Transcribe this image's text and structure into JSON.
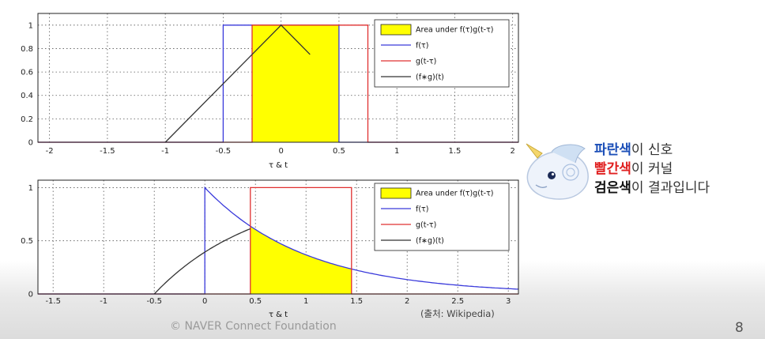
{
  "chart_data": [
    {
      "type": "line",
      "xlabel": "τ & t",
      "xlim": [
        -2.1,
        2.05
      ],
      "ylim": [
        0,
        1.1
      ],
      "xticks": [
        "-2",
        "-1.5",
        "-1",
        "-0.5",
        "0",
        "0.5",
        "1",
        "1.5",
        "2"
      ],
      "yticks": [
        "0",
        "0.2",
        "0.4",
        "0.6",
        "0.8",
        "1"
      ],
      "grid": true,
      "legend_position": "top-right",
      "series": [
        {
          "name": "Area under f(τ)g(t-τ)",
          "kind": "fill",
          "color": "#ffff00",
          "x": [
            -0.25,
            0.5
          ],
          "y": [
            1,
            1
          ]
        },
        {
          "name": "f(τ)",
          "color": "#3a3adb",
          "x": [
            -2.1,
            -0.5,
            -0.5,
            0.5,
            0.5,
            2.05
          ],
          "y": [
            0,
            0,
            1,
            1,
            0,
            0
          ]
        },
        {
          "name": "g(t-τ)",
          "color": "#e03030",
          "x": [
            -2.1,
            -0.25,
            -0.25,
            0.75,
            0.75,
            2.05
          ],
          "y": [
            0,
            0,
            1,
            1,
            0,
            0
          ]
        },
        {
          "name": "(f∗g)(t)",
          "color": "#333333",
          "x": [
            -1,
            0,
            0.25
          ],
          "y": [
            0,
            1,
            0.75
          ]
        }
      ]
    },
    {
      "type": "line",
      "xlabel": "τ & t",
      "xlim": [
        -1.65,
        3.1
      ],
      "ylim": [
        0,
        1.07
      ],
      "xticks": [
        "-1.5",
        "-1",
        "-0.5",
        "0",
        "0.5",
        "1",
        "1.5",
        "2",
        "2.5",
        "3"
      ],
      "yticks": [
        "0",
        "0.5",
        "1"
      ],
      "grid": true,
      "legend_position": "top-right",
      "series": [
        {
          "name": "Area under f(τ)g(t-τ)",
          "kind": "fill",
          "color": "#ffff00",
          "x": [
            0.45,
            1.45
          ],
          "f_decay": 1
        },
        {
          "name": "f(τ)",
          "color": "#3a3adb",
          "x": [
            -1.65,
            0,
            0,
            3.1
          ],
          "f_decay": 1
        },
        {
          "name": "g(t-τ)",
          "color": "#e03030",
          "x": [
            -1.65,
            0.45,
            0.45,
            1.45,
            1.45,
            3.1
          ],
          "y": [
            0,
            0,
            1,
            1,
            0,
            0
          ]
        },
        {
          "name": "(f∗g)(t)",
          "color": "#333333",
          "x": [
            -0.5,
            0.45
          ],
          "conv_start": -0.5
        }
      ]
    }
  ],
  "side_note": {
    "line1_kw": "파란색",
    "line1_rest": "이 신호",
    "line2_kw": "빨간색",
    "line2_rest": "이 커널",
    "line3_kw": "검은색",
    "line3_rest": "이 결과입니다"
  },
  "source": "(출처: Wikipedia)",
  "footer": "© NAVER Connect Foundation",
  "page_number": "8"
}
